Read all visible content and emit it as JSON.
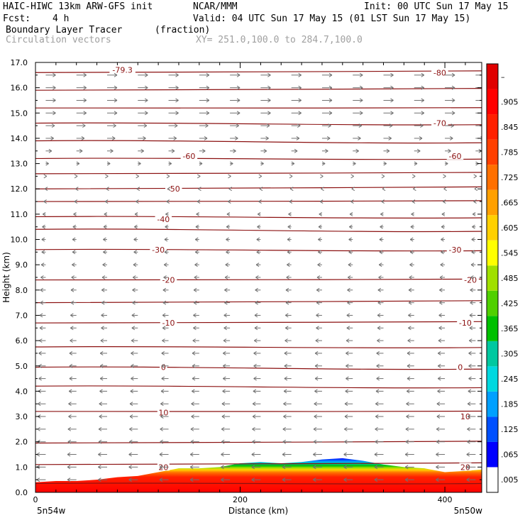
{
  "header": {
    "model_title": "HAIC-HIWC 13km ARW-GFS init",
    "org": "NCAR/MMM",
    "init": "Init: 00 UTC Sun 17 May 15",
    "fcst_label": "Fcst:",
    "fcst_value": "4 h",
    "valid": "Valid: 04 UTC Sun 17 May 15 (01 LST Sun 17 May 15)",
    "field_name": "Boundary Layer Tracer",
    "field_units": "(fraction)",
    "vector_label": "Circulation vectors",
    "cross_section": "XY= 251.0,100.0 to 284.7,100.0"
  },
  "chart_data": {
    "type": "heatmap",
    "xlabel": "Distance (km)",
    "ylabel": "Height (km)",
    "xlim": [
      0,
      436
    ],
    "ylim": [
      0,
      17
    ],
    "x_ticks": [
      0,
      200,
      400
    ],
    "y_ticks": [
      "0.0",
      "1.0",
      "2.0",
      "3.0",
      "4.0",
      "5.0",
      "6.0",
      "7.0",
      "8.0",
      "9.0",
      "10.0",
      "11.0",
      "12.0",
      "13.0",
      "14.0",
      "15.0",
      "16.0",
      "17.0"
    ],
    "left_endpoint": "5n54w",
    "right_endpoint": "5n50w",
    "colorbar": {
      "labels": [
        ".005",
        ".065",
        ".125",
        ".185",
        ".245",
        ".305",
        ".365",
        ".425",
        ".485",
        ".545",
        ".605",
        ".665",
        ".725",
        ".785",
        ".845",
        ".905",
        "–"
      ],
      "colors": [
        "#ffffff",
        "#0000ff",
        "#0050ff",
        "#00a0ff",
        "#00d8e0",
        "#00c8a0",
        "#00c000",
        "#50d000",
        "#a0e000",
        "#ffff00",
        "#ffd000",
        "#ffa000",
        "#ff7000",
        "#ff4000",
        "#ff2000",
        "#ff0000",
        "#e00000"
      ]
    },
    "tracer_top": {
      "x": [
        0,
        20,
        40,
        60,
        80,
        100,
        120,
        140,
        160,
        180,
        200,
        220,
        240,
        260,
        280,
        300,
        320,
        340,
        360,
        380,
        400,
        420,
        436
      ],
      "height_km": [
        0.4,
        0.45,
        0.45,
        0.5,
        0.6,
        0.65,
        0.8,
        0.95,
        0.95,
        1.0,
        1.15,
        1.2,
        1.15,
        1.2,
        1.3,
        1.35,
        1.25,
        1.1,
        1.0,
        0.95,
        0.8,
        0.85,
        0.9
      ]
    },
    "isotherms_c": [
      {
        "label": "-79.3",
        "x": 85,
        "height_km": 16.7
      },
      {
        "label": "-80",
        "x": 395,
        "height_km": 16.6
      },
      {
        "label": "-70",
        "x": 395,
        "height_km": 14.6
      },
      {
        "label": "-60",
        "x": 150,
        "height_km": 13.3
      },
      {
        "label": "-60",
        "x": 410,
        "height_km": 13.3
      },
      {
        "label": "-50",
        "x": 135,
        "height_km": 12.0
      },
      {
        "label": "-40",
        "x": 125,
        "height_km": 10.8
      },
      {
        "label": "-30",
        "x": 120,
        "height_km": 9.6
      },
      {
        "label": "-30",
        "x": 410,
        "height_km": 9.6
      },
      {
        "label": "-20",
        "x": 130,
        "height_km": 8.4
      },
      {
        "label": "-20",
        "x": 425,
        "height_km": 8.4
      },
      {
        "label": "-10",
        "x": 130,
        "height_km": 6.7
      },
      {
        "label": "-10",
        "x": 420,
        "height_km": 6.7
      },
      {
        "label": "0",
        "x": 125,
        "height_km": 4.95
      },
      {
        "label": "0",
        "x": 415,
        "height_km": 4.95
      },
      {
        "label": "10",
        "x": 125,
        "height_km": 3.15
      },
      {
        "label": "10",
        "x": 420,
        "height_km": 3.0
      },
      {
        "label": "20",
        "x": 125,
        "height_km": 1.0
      },
      {
        "label": "20",
        "x": 420,
        "height_km": 1.0
      }
    ],
    "isotherm_heights_km": [
      0.35,
      1.1,
      1.95,
      3.2,
      4.2,
      4.95,
      5.75,
      6.7,
      7.5,
      8.4,
      9.6,
      10.4,
      10.9,
      11.5,
      12.0,
      12.6,
      13.2,
      13.9,
      14.6,
      15.2,
      15.9,
      16.6
    ],
    "vectors": {
      "x": [
        10,
        40,
        70,
        100,
        130,
        160,
        190,
        220,
        250,
        280,
        310,
        340,
        370,
        400,
        430
      ],
      "levels_km": [
        0.5,
        1.0,
        1.5,
        2.0,
        2.5,
        3.0,
        3.5,
        4.0,
        4.5,
        5.0,
        5.5,
        6.0,
        6.5,
        7.0,
        7.5,
        8.0,
        8.5,
        9.0,
        9.5,
        10.0,
        10.5,
        11.0,
        11.5,
        12.0,
        12.5,
        13.0,
        13.5,
        14.0,
        14.5,
        15.0,
        15.5,
        16.0,
        16.5
      ],
      "u_rel": [
        -0.9,
        -0.9,
        -0.9,
        -0.85,
        -0.85,
        -0.8,
        -0.8,
        -0.75,
        -0.7,
        -0.7,
        -0.7,
        -0.65,
        -0.6,
        -0.6,
        -0.55,
        -0.55,
        -0.5,
        -0.45,
        -0.4,
        -0.4,
        -0.35,
        -0.3,
        -0.2,
        -0.1,
        0.1,
        0.3,
        0.6,
        0.8,
        0.9,
        1.0,
        1.0,
        1.0,
        1.0
      ]
    }
  }
}
